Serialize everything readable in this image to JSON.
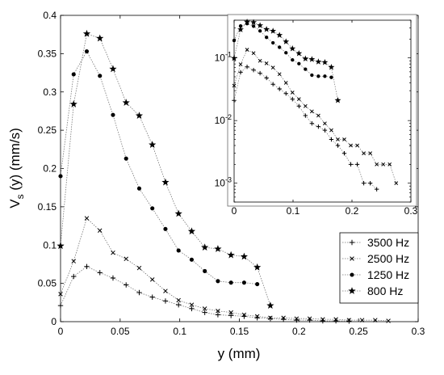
{
  "chart_data": [
    {
      "type": "line",
      "panel": "main",
      "xlabel": "y (mm)",
      "ylabel": "V",
      "ylabel_subscript": "s",
      "ylabel_suffix": " (y) (mm/s)",
      "xlim": [
        0,
        0.3
      ],
      "ylim": [
        0,
        0.4
      ],
      "x_scale": "linear",
      "y_scale": "linear",
      "x_ticks": [
        0,
        0.05,
        0.1,
        0.15,
        0.2,
        0.25,
        0.3
      ],
      "x_tick_labels": [
        "0",
        "0.05",
        "0.1",
        "0.15",
        "0.2",
        "0.25",
        "0.3"
      ],
      "y_ticks": [
        0,
        0.05,
        0.1,
        0.15,
        0.2,
        0.25,
        0.3,
        0.35,
        0.4
      ],
      "y_tick_labels": [
        "0",
        "0.05",
        "0.1",
        "0.15",
        "0.2",
        "0.25",
        "0.3",
        "0.35",
        "0.4"
      ],
      "grid": false,
      "legend_position": "bottom-right",
      "series": [
        {
          "name": "3500 Hz",
          "marker": "plus",
          "x": [
            0,
            0.011,
            0.022,
            0.033,
            0.044,
            0.055,
            0.066,
            0.077,
            0.088,
            0.099,
            0.11,
            0.121,
            0.132,
            0.143,
            0.154,
            0.165,
            0.176,
            0.187,
            0.198,
            0.209,
            0.22,
            0.231,
            0.242
          ],
          "y": [
            0.021,
            0.059,
            0.072,
            0.064,
            0.057,
            0.048,
            0.038,
            0.032,
            0.027,
            0.022,
            0.017,
            0.012,
            0.009,
            0.008,
            0.007,
            0.005,
            0.004,
            0.003,
            0.002,
            0.002,
            0.001,
            0.001,
            0.0008
          ]
        },
        {
          "name": "2500 Hz",
          "marker": "cross",
          "x": [
            0,
            0.011,
            0.022,
            0.033,
            0.044,
            0.055,
            0.066,
            0.077,
            0.088,
            0.099,
            0.11,
            0.121,
            0.132,
            0.143,
            0.154,
            0.165,
            0.176,
            0.187,
            0.198,
            0.209,
            0.22,
            0.231,
            0.242,
            0.253,
            0.264,
            0.275
          ],
          "y": [
            0.036,
            0.079,
            0.135,
            0.119,
            0.09,
            0.082,
            0.07,
            0.055,
            0.04,
            0.028,
            0.022,
            0.017,
            0.014,
            0.012,
            0.009,
            0.007,
            0.005,
            0.005,
            0.004,
            0.004,
            0.003,
            0.003,
            0.002,
            0.002,
            0.002,
            0.001
          ]
        },
        {
          "name": "1250 Hz",
          "marker": "circle",
          "x": [
            0,
            0.011,
            0.022,
            0.033,
            0.044,
            0.055,
            0.066,
            0.077,
            0.088,
            0.099,
            0.11,
            0.121,
            0.132,
            0.143,
            0.154,
            0.165
          ],
          "y": [
            0.19,
            0.323,
            0.353,
            0.321,
            0.27,
            0.213,
            0.174,
            0.148,
            0.121,
            0.093,
            0.081,
            0.066,
            0.053,
            0.051,
            0.051,
            0.049
          ]
        },
        {
          "name": "800 Hz",
          "marker": "star",
          "x": [
            0,
            0.011,
            0.022,
            0.033,
            0.044,
            0.055,
            0.066,
            0.077,
            0.088,
            0.099,
            0.11,
            0.121,
            0.132,
            0.143,
            0.154,
            0.165,
            0.176
          ],
          "y": [
            0.099,
            0.284,
            0.376,
            0.37,
            0.33,
            0.286,
            0.269,
            0.231,
            0.182,
            0.141,
            0.118,
            0.097,
            0.095,
            0.087,
            0.085,
            0.071,
            0.021
          ]
        }
      ]
    },
    {
      "type": "line",
      "panel": "inset",
      "xlim": [
        0,
        0.3
      ],
      "x_scale": "linear",
      "y_scale": "log",
      "ylim": [
        0.0005,
        0.4
      ],
      "x_ticks": [
        0,
        0.1,
        0.2,
        0.3
      ],
      "x_tick_labels": [
        "0",
        "0.1",
        "0.2",
        "0.3"
      ],
      "y_ticks": [
        0.001,
        0.01,
        0.1
      ],
      "y_tick_base": "10",
      "y_tick_exponents": [
        "-3",
        "-2",
        "-1"
      ],
      "grid": false,
      "series_ref": "same as main panel, log y scale"
    }
  ]
}
